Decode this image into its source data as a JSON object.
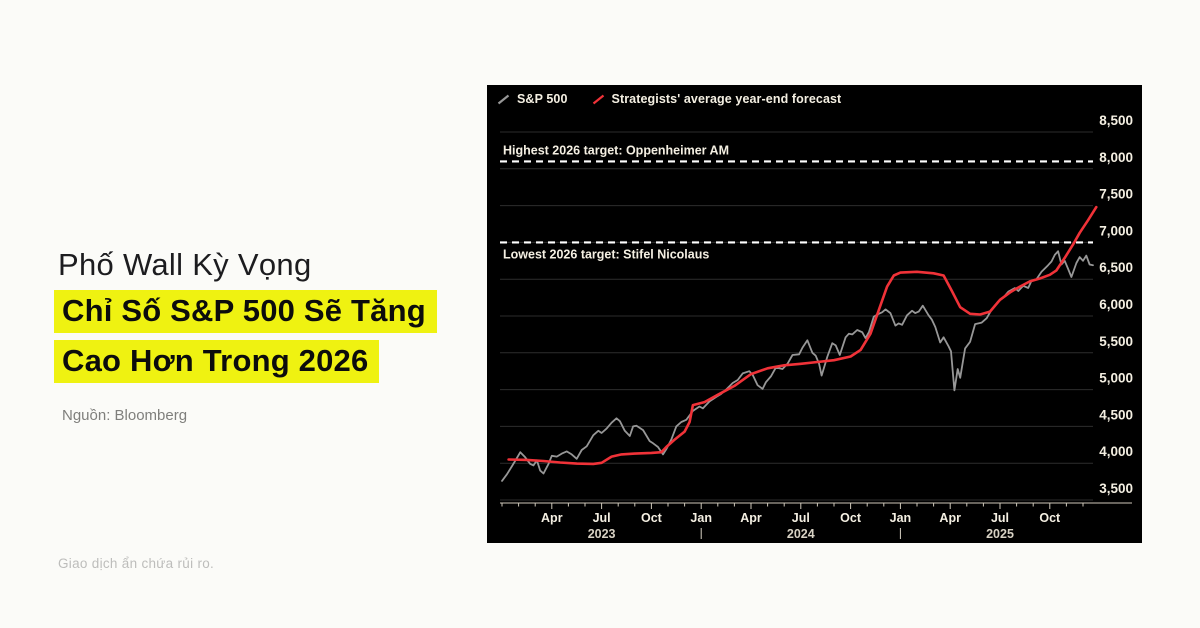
{
  "page": {
    "background": "#fbfbf8"
  },
  "left_panel": {
    "title_line1": "Phố Wall Kỳ Vọng",
    "highlight_line1": "Chỉ Số S&P 500 Sẽ Tăng",
    "highlight_line2": "Cao Hơn Trong 2026",
    "highlight_color": "#eff211",
    "source": "Nguồn: Bloomberg",
    "disclaimer": "Giao dịch ẩn chứa rủi ro."
  },
  "chart_style": {
    "background": "#000000",
    "text_color": "#f4efe2",
    "grid_color": "#2d2d2d",
    "axis_color": "#cfc9ba",
    "annotation_line_color": "#ffffff",
    "year_label_color": "#d8d2c4"
  },
  "chart_data": {
    "type": "line",
    "legend_position": "top-left",
    "x": {
      "unit": "months since Jan 2023",
      "month_count": 36,
      "ticks": [
        {
          "m": 3,
          "label": "Apr"
        },
        {
          "m": 6,
          "label": "Jul"
        },
        {
          "m": 9,
          "label": "Oct"
        },
        {
          "m": 12,
          "label": "Jan"
        },
        {
          "m": 15,
          "label": "Apr"
        },
        {
          "m": 18,
          "label": "Jul"
        },
        {
          "m": 21,
          "label": "Oct"
        },
        {
          "m": 24,
          "label": "Jan"
        },
        {
          "m": 27,
          "label": "Apr"
        },
        {
          "m": 30,
          "label": "Jul"
        },
        {
          "m": 33,
          "label": "Oct"
        }
      ],
      "year_labels": [
        {
          "m": 6,
          "label": "2023"
        },
        {
          "m": 18,
          "label": "2024"
        },
        {
          "m": 30,
          "label": "2025"
        }
      ],
      "year_dividers_m": [
        12,
        24
      ]
    },
    "y": {
      "min": 3500,
      "max": 8500,
      "step": 500
    },
    "series": [
      {
        "id": "sp500",
        "name": "S&P 500",
        "color": "#979797",
        "width": 1.8,
        "points": [
          [
            0,
            3760
          ],
          [
            0.3,
            3850
          ],
          [
            0.6,
            3960
          ],
          [
            0.9,
            4070
          ],
          [
            1.1,
            4150
          ],
          [
            1.4,
            4080
          ],
          [
            1.7,
            3990
          ],
          [
            1.9,
            3970
          ],
          [
            2.1,
            4040
          ],
          [
            2.3,
            3900
          ],
          [
            2.5,
            3860
          ],
          [
            2.8,
            3990
          ],
          [
            3.0,
            4100
          ],
          [
            3.3,
            4090
          ],
          [
            3.6,
            4130
          ],
          [
            3.9,
            4160
          ],
          [
            4.2,
            4120
          ],
          [
            4.5,
            4060
          ],
          [
            4.8,
            4180
          ],
          [
            5.1,
            4230
          ],
          [
            5.5,
            4380
          ],
          [
            5.8,
            4440
          ],
          [
            6.0,
            4410
          ],
          [
            6.3,
            4470
          ],
          [
            6.6,
            4550
          ],
          [
            6.9,
            4610
          ],
          [
            7.1,
            4570
          ],
          [
            7.4,
            4440
          ],
          [
            7.7,
            4370
          ],
          [
            7.9,
            4500
          ],
          [
            8.1,
            4510
          ],
          [
            8.5,
            4450
          ],
          [
            8.9,
            4300
          ],
          [
            9.1,
            4270
          ],
          [
            9.4,
            4220
          ],
          [
            9.7,
            4120
          ],
          [
            9.9,
            4190
          ],
          [
            10.2,
            4320
          ],
          [
            10.5,
            4500
          ],
          [
            10.8,
            4560
          ],
          [
            11.1,
            4590
          ],
          [
            11.5,
            4710
          ],
          [
            11.9,
            4770
          ],
          [
            12.1,
            4745
          ],
          [
            12.5,
            4840
          ],
          [
            12.9,
            4900
          ],
          [
            13.2,
            4940
          ],
          [
            13.5,
            5000
          ],
          [
            13.9,
            5090
          ],
          [
            14.2,
            5130
          ],
          [
            14.5,
            5220
          ],
          [
            14.9,
            5250
          ],
          [
            15.1,
            5200
          ],
          [
            15.4,
            5060
          ],
          [
            15.7,
            5010
          ],
          [
            15.9,
            5100
          ],
          [
            16.2,
            5180
          ],
          [
            16.5,
            5300
          ],
          [
            16.9,
            5280
          ],
          [
            17.2,
            5350
          ],
          [
            17.5,
            5470
          ],
          [
            17.9,
            5480
          ],
          [
            18.1,
            5570
          ],
          [
            18.4,
            5670
          ],
          [
            18.7,
            5500
          ],
          [
            18.9,
            5460
          ],
          [
            19.1,
            5350
          ],
          [
            19.25,
            5190
          ],
          [
            19.6,
            5450
          ],
          [
            19.9,
            5630
          ],
          [
            20.1,
            5600
          ],
          [
            20.35,
            5470
          ],
          [
            20.7,
            5710
          ],
          [
            20.9,
            5760
          ],
          [
            21.1,
            5750
          ],
          [
            21.4,
            5810
          ],
          [
            21.7,
            5780
          ],
          [
            21.9,
            5700
          ],
          [
            22.1,
            5780
          ],
          [
            22.4,
            5990
          ],
          [
            22.7,
            6030
          ],
          [
            22.9,
            6050
          ],
          [
            23.1,
            6090
          ],
          [
            23.4,
            6040
          ],
          [
            23.7,
            5870
          ],
          [
            23.9,
            5900
          ],
          [
            24.1,
            5880
          ],
          [
            24.4,
            6010
          ],
          [
            24.7,
            6070
          ],
          [
            24.9,
            6040
          ],
          [
            25.1,
            6060
          ],
          [
            25.35,
            6140
          ],
          [
            25.7,
            6010
          ],
          [
            25.9,
            5950
          ],
          [
            26.1,
            5850
          ],
          [
            26.4,
            5640
          ],
          [
            26.6,
            5710
          ],
          [
            26.9,
            5590
          ],
          [
            27.05,
            5520
          ],
          [
            27.25,
            4990
          ],
          [
            27.45,
            5280
          ],
          [
            27.6,
            5160
          ],
          [
            27.9,
            5560
          ],
          [
            28.2,
            5650
          ],
          [
            28.5,
            5890
          ],
          [
            28.9,
            5910
          ],
          [
            29.2,
            5970
          ],
          [
            29.5,
            6090
          ],
          [
            29.9,
            6200
          ],
          [
            30.2,
            6250
          ],
          [
            30.5,
            6330
          ],
          [
            30.9,
            6380
          ],
          [
            31.1,
            6340
          ],
          [
            31.4,
            6410
          ],
          [
            31.7,
            6380
          ],
          [
            31.9,
            6480
          ],
          [
            32.2,
            6500
          ],
          [
            32.5,
            6600
          ],
          [
            32.9,
            6690
          ],
          [
            33.1,
            6740
          ],
          [
            33.3,
            6830
          ],
          [
            33.5,
            6880
          ],
          [
            33.7,
            6700
          ],
          [
            33.9,
            6750
          ],
          [
            34.1,
            6640
          ],
          [
            34.3,
            6530
          ],
          [
            34.6,
            6720
          ],
          [
            34.8,
            6800
          ],
          [
            35.0,
            6750
          ],
          [
            35.2,
            6820
          ],
          [
            35.4,
            6700
          ],
          [
            35.6,
            6690
          ]
        ]
      },
      {
        "id": "forecast",
        "name": "Strategists' average year-end forecast",
        "color": "#f03238",
        "width": 2.6,
        "points": [
          [
            0.4,
            4050
          ],
          [
            1.5,
            4045
          ],
          [
            2.5,
            4030
          ],
          [
            3.5,
            4010
          ],
          [
            4.5,
            3995
          ],
          [
            5.5,
            3990
          ],
          [
            6.0,
            4005
          ],
          [
            6.6,
            4090
          ],
          [
            7.2,
            4120
          ],
          [
            8.0,
            4130
          ],
          [
            9.0,
            4140
          ],
          [
            9.6,
            4150
          ],
          [
            9.9,
            4220
          ],
          [
            10.4,
            4320
          ],
          [
            11.0,
            4430
          ],
          [
            11.3,
            4560
          ],
          [
            11.5,
            4790
          ],
          [
            12.2,
            4830
          ],
          [
            13.0,
            4930
          ],
          [
            14.0,
            5050
          ],
          [
            15.0,
            5210
          ],
          [
            16.0,
            5290
          ],
          [
            17.0,
            5330
          ],
          [
            18.0,
            5350
          ],
          [
            19.0,
            5375
          ],
          [
            20.0,
            5400
          ],
          [
            21.0,
            5450
          ],
          [
            21.6,
            5540
          ],
          [
            22.2,
            5760
          ],
          [
            22.7,
            6080
          ],
          [
            23.2,
            6400
          ],
          [
            23.6,
            6550
          ],
          [
            24.0,
            6590
          ],
          [
            25.0,
            6600
          ],
          [
            26.0,
            6580
          ],
          [
            26.6,
            6550
          ],
          [
            27.1,
            6340
          ],
          [
            27.6,
            6120
          ],
          [
            28.2,
            6030
          ],
          [
            28.8,
            6020
          ],
          [
            29.4,
            6060
          ],
          [
            30.0,
            6220
          ],
          [
            30.6,
            6320
          ],
          [
            31.2,
            6400
          ],
          [
            31.8,
            6470
          ],
          [
            32.4,
            6510
          ],
          [
            33.0,
            6560
          ],
          [
            33.4,
            6620
          ],
          [
            33.9,
            6790
          ],
          [
            34.4,
            6970
          ],
          [
            34.8,
            7130
          ],
          [
            35.3,
            7300
          ],
          [
            35.8,
            7480
          ]
        ]
      }
    ],
    "annotations": [
      {
        "id": "highest-target",
        "label": "Highest 2026 target: Oppenheimer AM",
        "value": 8100,
        "label_side": "above",
        "style": "dashed"
      },
      {
        "id": "lowest-target",
        "label": "Lowest 2026 target: Stifel Nicolaus",
        "value": 7000,
        "label_side": "below",
        "style": "dashed"
      }
    ]
  }
}
